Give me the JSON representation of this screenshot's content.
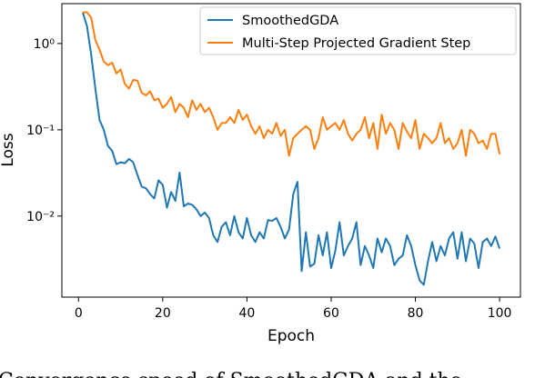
{
  "chart_data": {
    "type": "line",
    "xlabel": "Epoch",
    "ylabel": "Loss",
    "caption": "Convergence speed of SmoothedGDA and the",
    "x": [
      1,
      2,
      3,
      4,
      5,
      6,
      7,
      8,
      9,
      10,
      11,
      12,
      13,
      14,
      15,
      16,
      17,
      18,
      19,
      20,
      21,
      22,
      23,
      24,
      25,
      26,
      27,
      28,
      29,
      30,
      31,
      32,
      33,
      34,
      35,
      36,
      37,
      38,
      39,
      40,
      41,
      42,
      43,
      44,
      45,
      46,
      47,
      48,
      49,
      50,
      51,
      52,
      53,
      54,
      55,
      56,
      57,
      58,
      59,
      60,
      61,
      62,
      63,
      64,
      65,
      66,
      67,
      68,
      69,
      70,
      71,
      72,
      73,
      74,
      75,
      76,
      77,
      78,
      79,
      80,
      81,
      82,
      83,
      84,
      85,
      86,
      87,
      88,
      89,
      90,
      91,
      92,
      93,
      94,
      95,
      96,
      97,
      98,
      99,
      100
    ],
    "series": [
      {
        "name": "SmoothedGDA",
        "color": "#1f77b4",
        "values": [
          2.3,
          1.6,
          0.75,
          0.3,
          0.13,
          0.1,
          0.065,
          0.057,
          0.04,
          0.042,
          0.041,
          0.046,
          0.042,
          0.03,
          0.022,
          0.021,
          0.018,
          0.016,
          0.026,
          0.023,
          0.0125,
          0.019,
          0.015,
          0.032,
          0.013,
          0.014,
          0.0135,
          0.012,
          0.01,
          0.011,
          0.0095,
          0.006,
          0.005,
          0.0075,
          0.0085,
          0.006,
          0.01,
          0.0065,
          0.0055,
          0.0095,
          0.006,
          0.005,
          0.0065,
          0.0055,
          0.009,
          0.0088,
          0.0095,
          0.0075,
          0.0055,
          0.007,
          0.018,
          0.025,
          0.0023,
          0.0065,
          0.0026,
          0.0028,
          0.006,
          0.0035,
          0.0065,
          0.0025,
          0.004,
          0.0085,
          0.0035,
          0.0045,
          0.0055,
          0.0085,
          0.0027,
          0.0045,
          0.0035,
          0.0025,
          0.0055,
          0.0038,
          0.0055,
          0.0045,
          0.0027,
          0.0032,
          0.0035,
          0.006,
          0.0045,
          0.0027,
          0.0018,
          0.0016,
          0.003,
          0.005,
          0.003,
          0.0045,
          0.0035,
          0.0055,
          0.0065,
          0.0032,
          0.0065,
          0.003,
          0.0055,
          0.0048,
          0.0025,
          0.005,
          0.0055,
          0.0045,
          0.0058,
          0.0042
        ]
      },
      {
        "name": "Multi-Step Projected Gradient Step",
        "color": "#ff7f0e",
        "values": [
          2.3,
          2.3,
          2.0,
          1.1,
          0.85,
          0.62,
          0.56,
          0.6,
          0.45,
          0.5,
          0.34,
          0.3,
          0.38,
          0.37,
          0.27,
          0.25,
          0.28,
          0.22,
          0.23,
          0.18,
          0.2,
          0.24,
          0.16,
          0.2,
          0.18,
          0.14,
          0.22,
          0.17,
          0.2,
          0.16,
          0.18,
          0.14,
          0.1,
          0.12,
          0.12,
          0.14,
          0.12,
          0.17,
          0.13,
          0.15,
          0.11,
          0.09,
          0.11,
          0.08,
          0.1,
          0.09,
          0.12,
          0.085,
          0.1,
          0.05,
          0.08,
          0.09,
          0.1,
          0.11,
          0.1,
          0.06,
          0.08,
          0.14,
          0.1,
          0.11,
          0.12,
          0.1,
          0.13,
          0.09,
          0.075,
          0.09,
          0.1,
          0.14,
          0.08,
          0.12,
          0.06,
          0.15,
          0.09,
          0.12,
          0.1,
          0.06,
          0.12,
          0.095,
          0.08,
          0.13,
          0.06,
          0.09,
          0.08,
          0.07,
          0.08,
          0.12,
          0.07,
          0.08,
          0.06,
          0.07,
          0.1,
          0.05,
          0.1,
          0.09,
          0.07,
          0.075,
          0.06,
          0.09,
          0.09,
          0.052
        ]
      }
    ],
    "xlim": [
      -3.95,
      104.95
    ],
    "xticks": [
      0,
      20,
      40,
      60,
      80,
      100
    ],
    "ylim": [
      0.00115,
      2.9
    ],
    "yscale": "log",
    "yticks": [
      {
        "value": 0.01,
        "label": "10⁻²"
      },
      {
        "value": 0.1,
        "label": "10⁻¹"
      },
      {
        "value": 1,
        "label": "10⁰"
      }
    ],
    "legend": "upper right",
    "grid": false
  }
}
